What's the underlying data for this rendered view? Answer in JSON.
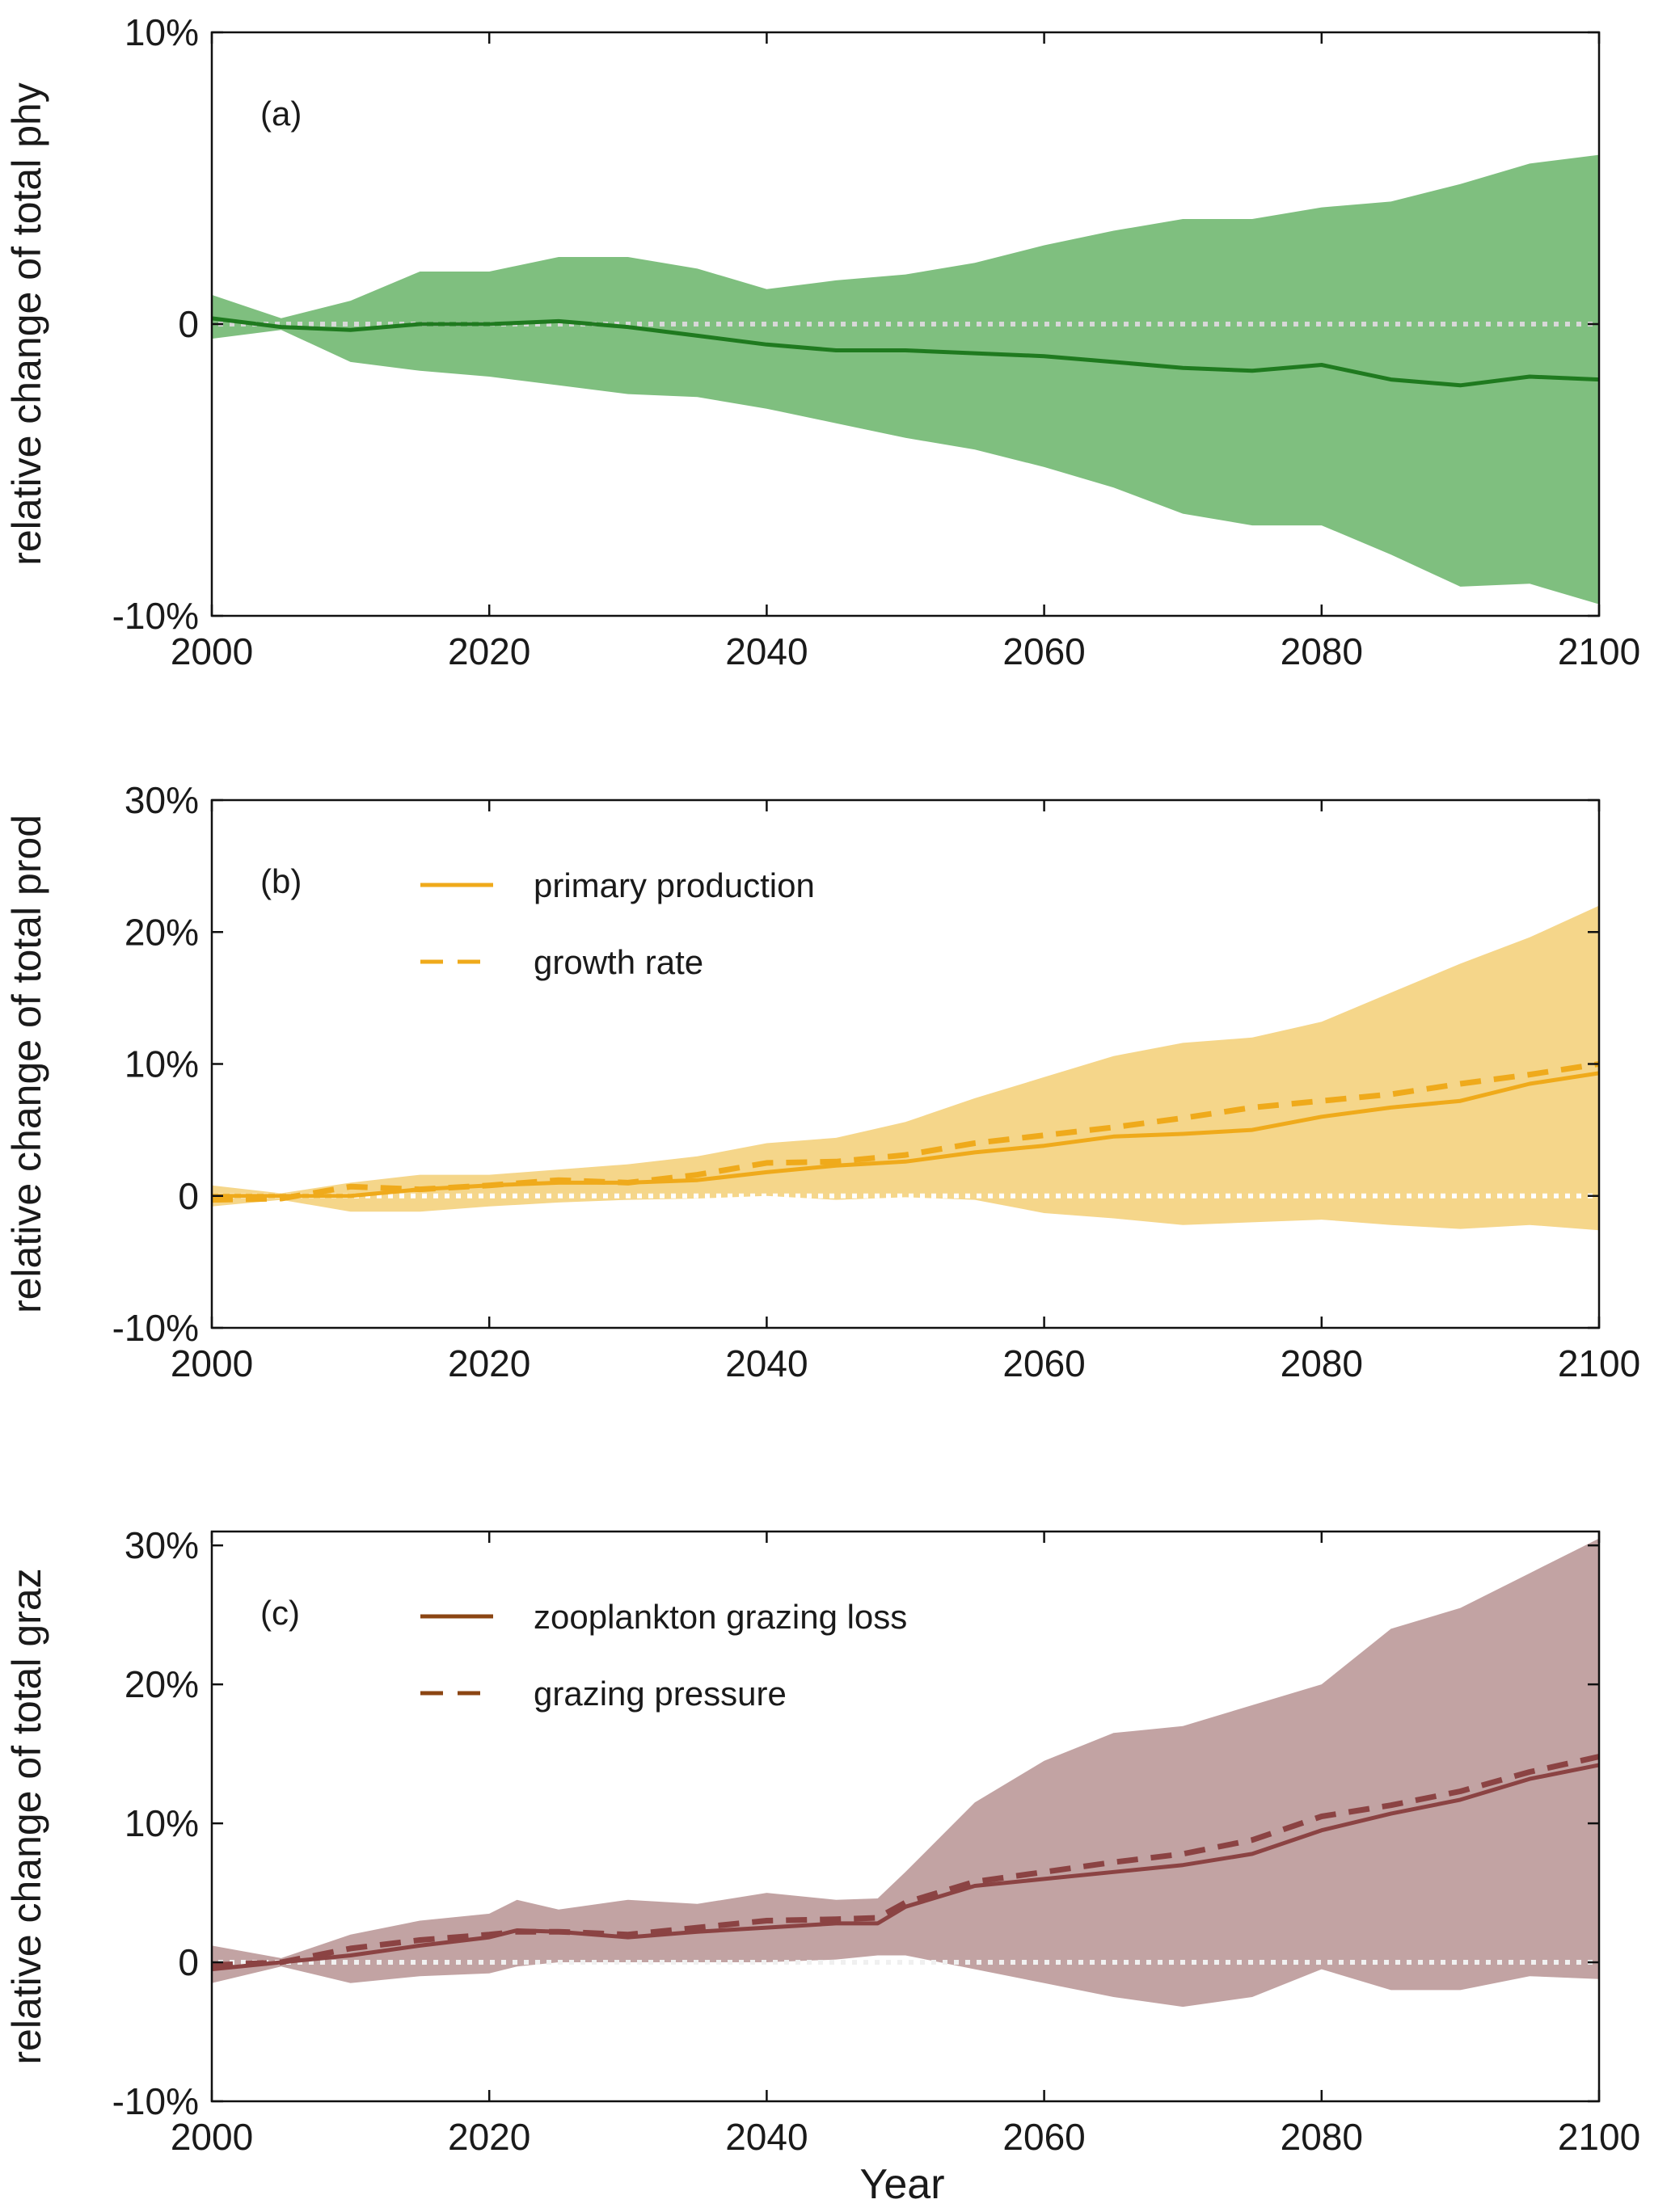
{
  "chart_data": [
    {
      "type": "area",
      "panel_label": "(a)",
      "ylabel": "relative change of total phy",
      "xlabel": "",
      "xlim": [
        2000,
        2100
      ],
      "ylim": [
        -10,
        10
      ],
      "x_ticks": [
        2000,
        2020,
        2040,
        2060,
        2080,
        2100
      ],
      "y_ticks": [
        -10,
        0,
        10
      ],
      "y_tick_labels": [
        "-10%",
        "0",
        "10%"
      ],
      "colors": {
        "band": "#7fbf7f",
        "line": "#1f7a1f",
        "zero": "#d8d8d8"
      },
      "legend": [],
      "band_x": [
        2000,
        2005,
        2010,
        2015,
        2020,
        2025,
        2030,
        2035,
        2040,
        2045,
        2050,
        2055,
        2060,
        2065,
        2070,
        2075,
        2080,
        2085,
        2090,
        2095,
        2100
      ],
      "band_upper": [
        1.0,
        0.2,
        0.8,
        1.8,
        1.8,
        2.3,
        2.3,
        1.9,
        1.2,
        1.5,
        1.7,
        2.1,
        2.7,
        3.2,
        3.6,
        3.6,
        4.0,
        4.2,
        4.8,
        5.5,
        5.8
      ],
      "band_lower": [
        -0.5,
        -0.2,
        -1.3,
        -1.6,
        -1.8,
        -2.1,
        -2.4,
        -2.5,
        -2.9,
        -3.4,
        -3.9,
        -4.3,
        -4.9,
        -5.6,
        -6.5,
        -6.9,
        -6.9,
        -7.9,
        -9.0,
        -8.9,
        -9.6
      ],
      "series": [
        {
          "name": "total phy",
          "style": "solid",
          "x": [
            2000,
            2005,
            2010,
            2015,
            2020,
            2025,
            2030,
            2035,
            2040,
            2045,
            2050,
            2055,
            2060,
            2065,
            2070,
            2075,
            2080,
            2085,
            2090,
            2095,
            2100
          ],
          "values": [
            0.2,
            -0.1,
            -0.2,
            0.0,
            0.0,
            0.1,
            -0.1,
            -0.4,
            -0.7,
            -0.9,
            -0.9,
            -1.0,
            -1.1,
            -1.3,
            -1.5,
            -1.6,
            -1.4,
            -1.9,
            -2.1,
            -1.8,
            -1.9
          ]
        }
      ]
    },
    {
      "type": "area",
      "panel_label": "(b)",
      "ylabel": "relative change of total prod",
      "xlabel": "",
      "xlim": [
        2000,
        2100
      ],
      "ylim": [
        -10,
        30
      ],
      "x_ticks": [
        2000,
        2020,
        2040,
        2060,
        2080,
        2100
      ],
      "y_ticks": [
        -10,
        0,
        10,
        20,
        30
      ],
      "y_tick_labels": [
        "-10%",
        "0",
        "10%",
        "20%",
        "30%"
      ],
      "colors": {
        "band": "#f5d68a",
        "line": "#efaa1b",
        "zero": "#ffffff"
      },
      "legend": [
        {
          "label": "primary production",
          "style": "solid"
        },
        {
          "label": "growth rate",
          "style": "dashed"
        }
      ],
      "band_x": [
        2000,
        2005,
        2010,
        2015,
        2020,
        2025,
        2030,
        2035,
        2040,
        2045,
        2050,
        2055,
        2060,
        2065,
        2070,
        2075,
        2080,
        2085,
        2090,
        2095,
        2100
      ],
      "band_upper": [
        0.8,
        0.2,
        1.0,
        1.6,
        1.6,
        2.0,
        2.4,
        3.0,
        4.0,
        4.4,
        5.6,
        7.4,
        9.0,
        10.6,
        11.6,
        12.0,
        13.2,
        15.4,
        17.6,
        19.6,
        22.0
      ],
      "band_lower": [
        -0.8,
        -0.3,
        -1.2,
        -1.2,
        -0.8,
        -0.5,
        -0.3,
        -0.2,
        0.0,
        -0.3,
        -0.1,
        -0.3,
        -1.3,
        -1.7,
        -2.2,
        -2.0,
        -1.8,
        -2.2,
        -2.5,
        -2.2,
        -2.6
      ],
      "series": [
        {
          "name": "primary production",
          "style": "solid",
          "x": [
            2000,
            2005,
            2010,
            2015,
            2020,
            2025,
            2030,
            2035,
            2040,
            2045,
            2050,
            2055,
            2060,
            2065,
            2070,
            2075,
            2080,
            2085,
            2090,
            2095,
            2100
          ],
          "values": [
            0.0,
            0.0,
            0.0,
            0.5,
            0.8,
            1.0,
            1.0,
            1.2,
            1.8,
            2.3,
            2.6,
            3.3,
            3.8,
            4.5,
            4.7,
            5.0,
            6.0,
            6.7,
            7.2,
            8.5,
            9.3
          ]
        },
        {
          "name": "growth rate",
          "style": "dashed",
          "x": [
            2000,
            2005,
            2010,
            2015,
            2020,
            2025,
            2030,
            2035,
            2040,
            2045,
            2050,
            2055,
            2060,
            2065,
            2070,
            2075,
            2080,
            2085,
            2090,
            2095,
            2100
          ],
          "values": [
            -0.3,
            -0.2,
            0.7,
            0.5,
            0.8,
            1.2,
            1.0,
            1.6,
            2.5,
            2.6,
            3.1,
            4.0,
            4.6,
            5.2,
            5.9,
            6.7,
            7.2,
            7.7,
            8.5,
            9.2,
            10.0
          ]
        }
      ]
    },
    {
      "type": "area",
      "panel_label": "(c)",
      "ylabel": "relative change of total graz",
      "xlabel": "Year",
      "xlim": [
        2000,
        2100
      ],
      "ylim": [
        -10,
        31
      ],
      "x_ticks": [
        2000,
        2020,
        2040,
        2060,
        2080,
        2100
      ],
      "y_ticks": [
        -10,
        0,
        10,
        20,
        30
      ],
      "y_tick_labels": [
        "-10%",
        "0",
        "10%",
        "20%",
        "30%"
      ],
      "colors": {
        "band": "#c2a3a3",
        "line": "#8b4343",
        "zero": "#f0f0f0",
        "legend_line": "#8b4513"
      },
      "legend": [
        {
          "label": "zooplankton grazing loss",
          "style": "solid"
        },
        {
          "label": "grazing pressure",
          "style": "dashed"
        }
      ],
      "band_x": [
        2000,
        2005,
        2010,
        2015,
        2020,
        2022,
        2025,
        2030,
        2035,
        2040,
        2045,
        2048,
        2050,
        2055,
        2060,
        2065,
        2070,
        2075,
        2080,
        2085,
        2090,
        2095,
        2100
      ],
      "band_upper": [
        1.2,
        0.3,
        2.0,
        3.0,
        3.5,
        4.5,
        3.8,
        4.5,
        4.2,
        5.0,
        4.5,
        4.6,
        6.5,
        11.5,
        14.5,
        16.5,
        17.0,
        18.5,
        20.0,
        24.0,
        25.5,
        28.0,
        30.5
      ],
      "band_lower": [
        -1.5,
        -0.3,
        -1.5,
        -1.0,
        -0.8,
        -0.3,
        0.0,
        0.0,
        0.0,
        0.0,
        0.2,
        0.5,
        0.5,
        -0.5,
        -1.5,
        -2.5,
        -3.2,
        -2.5,
        -0.5,
        -2.0,
        -2.0,
        -1.0,
        -1.2
      ],
      "series": [
        {
          "name": "zooplankton grazing loss",
          "style": "solid",
          "x": [
            2000,
            2005,
            2010,
            2015,
            2020,
            2022,
            2025,
            2030,
            2035,
            2040,
            2045,
            2048,
            2050,
            2055,
            2060,
            2065,
            2070,
            2075,
            2080,
            2085,
            2090,
            2095,
            2100
          ],
          "values": [
            -0.5,
            0.0,
            0.5,
            1.2,
            1.8,
            2.3,
            2.2,
            1.8,
            2.2,
            2.5,
            2.8,
            2.8,
            4.0,
            5.5,
            6.0,
            6.5,
            7.0,
            7.8,
            9.5,
            10.7,
            11.7,
            13.2,
            14.2
          ]
        },
        {
          "name": "grazing pressure",
          "style": "dashed",
          "x": [
            2000,
            2005,
            2010,
            2015,
            2020,
            2022,
            2025,
            2030,
            2035,
            2040,
            2045,
            2048,
            2050,
            2055,
            2060,
            2065,
            2070,
            2075,
            2080,
            2085,
            2090,
            2095,
            2100
          ],
          "values": [
            -0.2,
            0.0,
            1.0,
            1.6,
            2.0,
            2.2,
            2.2,
            2.0,
            2.5,
            3.0,
            3.1,
            3.2,
            4.3,
            5.8,
            6.5,
            7.2,
            7.8,
            8.8,
            10.5,
            11.3,
            12.3,
            13.7,
            14.8
          ]
        }
      ]
    }
  ]
}
